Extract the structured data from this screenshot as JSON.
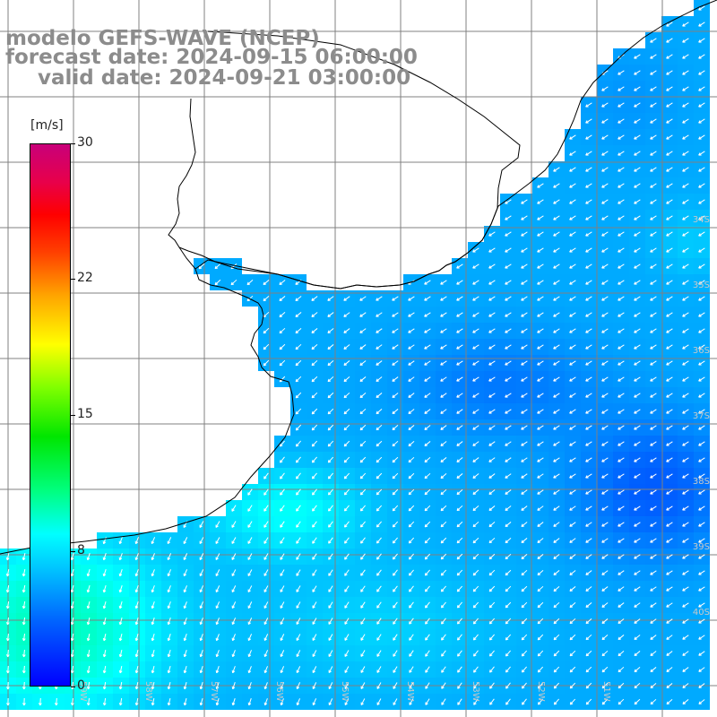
{
  "title": {
    "line1": "modelo GEFS-WAVE (NCEP)",
    "line2": "forecast date: 2024-09-15 06:00:00",
    "line3": "valid date: 2024-09-21 03:00:00"
  },
  "colorbar": {
    "unit": "[m/s]",
    "ticks": [
      "30",
      "22",
      "15",
      "8",
      "0"
    ],
    "tick_values": [
      30,
      22,
      15,
      8,
      0
    ],
    "range": [
      0,
      30
    ],
    "colors": [
      "#0000ff",
      "#00c8ff",
      "#00ffff",
      "#00e600",
      "#ffff00",
      "#ff8000",
      "#ff0000",
      "#c8007a"
    ]
  },
  "map": {
    "lat_labels": [
      "34S",
      "35S",
      "36S",
      "37S",
      "38S",
      "39S",
      "40S"
    ],
    "lat_values": [
      -34,
      -35,
      -36,
      -37,
      -38,
      -39,
      -40
    ],
    "lon_labels": [
      "59W",
      "58W",
      "57W",
      "56W",
      "55W",
      "54W",
      "53W",
      "52W",
      "51W"
    ],
    "grid": true,
    "coastline_color": "#000000",
    "arrow_color": "#ffffff",
    "grid_color": "#808080"
  }
}
